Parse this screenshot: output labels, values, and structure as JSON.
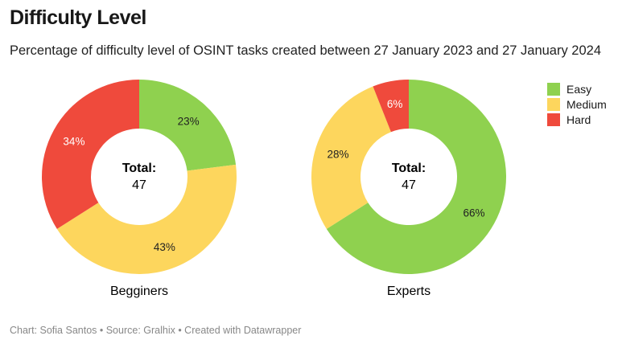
{
  "title": "Difficulty Level",
  "subtitle": "Percentage of difficulty level of OSINT tasks created between 27 January 2023 and 27 January 2024",
  "footer": "Chart: Sofia Santos • Source: Gralhix • Created with Datawrapper",
  "legend": [
    {
      "label": "Easy",
      "color": "#8fd14f"
    },
    {
      "label": "Medium",
      "color": "#fdd65d"
    },
    {
      "label": "Hard",
      "color": "#ef4a3c"
    }
  ],
  "chart_data": [
    {
      "type": "pie",
      "title": "Begginers",
      "center_label": "Total:",
      "center_value": "47",
      "categories": [
        "Easy",
        "Medium",
        "Hard"
      ],
      "values": [
        23,
        43,
        34
      ],
      "unit": "%"
    },
    {
      "type": "pie",
      "title": "Experts",
      "center_label": "Total:",
      "center_value": "47",
      "categories": [
        "Easy",
        "Medium",
        "Hard"
      ],
      "values": [
        66,
        28,
        6
      ],
      "unit": "%"
    }
  ]
}
